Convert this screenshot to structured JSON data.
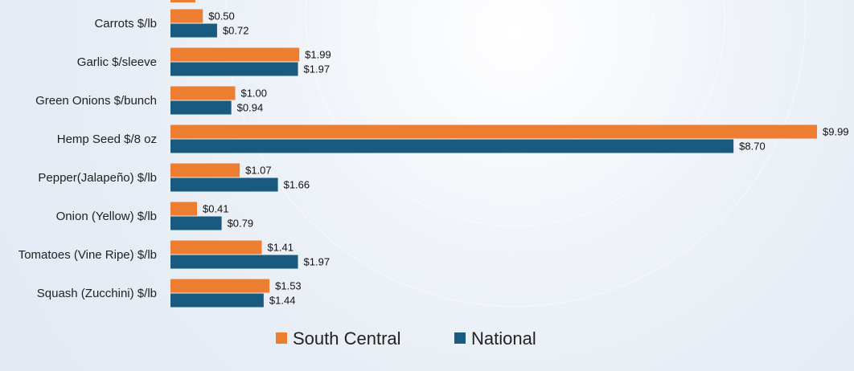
{
  "chart_data": {
    "type": "bar",
    "orientation": "horizontal",
    "categories": [
      "Carrots $/lb",
      "Garlic $/sleeve",
      "Green Onions $/bunch",
      "Hemp Seed $/8 oz",
      "Pepper(Jalapeño) $/lb",
      "Onion (Yellow) $/lb",
      "Tomatoes (Vine Ripe) $/lb",
      "Squash (Zucchini) $/lb"
    ],
    "series": [
      {
        "name": "South Central",
        "color": "#ED7D31",
        "values": [
          0.5,
          1.99,
          1.0,
          9.99,
          1.07,
          0.41,
          1.41,
          1.53
        ],
        "labels": [
          "$0.50",
          "$1.99",
          "$1.00",
          "$9.99",
          "$1.07",
          "$0.41",
          "$1.41",
          "$1.53"
        ]
      },
      {
        "name": "National",
        "color": "#1B5A80",
        "values": [
          0.72,
          1.97,
          0.94,
          8.7,
          1.66,
          0.79,
          1.97,
          1.44
        ],
        "labels": [
          "$0.72",
          "$1.97",
          "$0.94",
          "$8.70",
          "$1.66",
          "$0.79",
          "$1.97",
          "$1.44"
        ]
      }
    ],
    "x_min": 0,
    "grid": false,
    "legend_position": "bottom"
  }
}
